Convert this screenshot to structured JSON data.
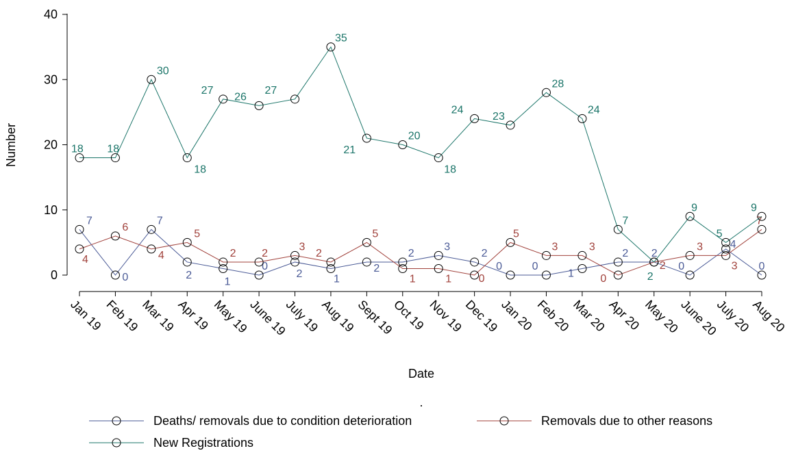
{
  "chart_data": {
    "type": "line",
    "xlabel": "Date",
    "ylabel": "Number",
    "ylim": [
      0,
      40
    ],
    "yticks": [
      0,
      10,
      20,
      30,
      40
    ],
    "grid": false,
    "legend_placement": "bottom",
    "note": ".",
    "categories": [
      "Jan 19",
      "Feb 19",
      "Mar 19",
      "Apr 19",
      "May 19",
      "June 19",
      "July 19",
      "Aug 19",
      "Sept 19",
      "Oct 19",
      "Nov 19",
      "Dec 19",
      "Jan 20",
      "Feb 20",
      "Mar 20",
      "Apr 20",
      "May 20",
      "June 20",
      "July 20",
      "Aug 20"
    ],
    "series": [
      {
        "name": "Deaths/ removals due to condition deterioration",
        "color": "#4a5a96",
        "values": [
          7,
          0,
          7,
          2,
          1,
          0,
          2,
          1,
          2,
          2,
          3,
          2,
          0,
          0,
          1,
          2,
          2,
          0,
          4,
          0
        ]
      },
      {
        "name": "Removals due to other reasons",
        "color": "#a0403a",
        "values": [
          4,
          6,
          4,
          5,
          2,
          2,
          3,
          2,
          5,
          1,
          1,
          0,
          5,
          3,
          3,
          0,
          2,
          3,
          3,
          7
        ]
      },
      {
        "name": "New Registrations",
        "color": "#1a7468",
        "values": [
          18,
          18,
          30,
          18,
          27,
          26,
          27,
          35,
          21,
          20,
          18,
          24,
          23,
          28,
          24,
          7,
          2,
          9,
          5,
          9
        ]
      }
    ]
  }
}
